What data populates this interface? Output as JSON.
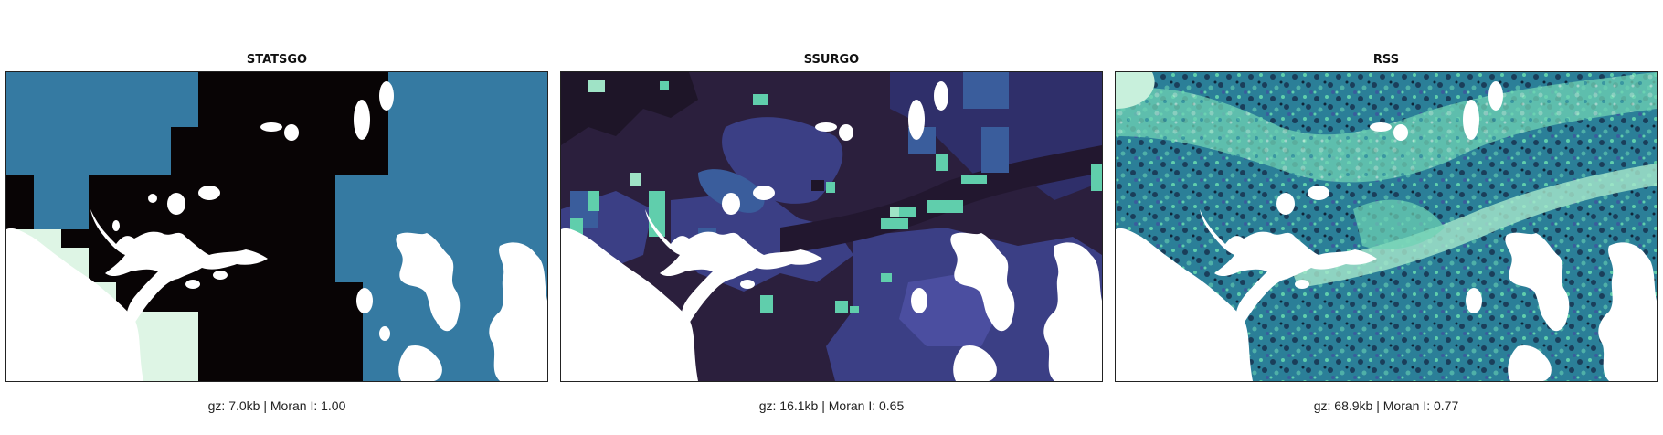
{
  "panels": [
    {
      "title": "STATSGO",
      "caption": "gz: 7.0kb | Moran I: 1.00"
    },
    {
      "title": "SSURGO",
      "caption": "gz: 16.1kb | Moran I: 0.65"
    },
    {
      "title": "RSS",
      "caption": "gz: 68.9kb | Moran I: 0.77"
    }
  ],
  "colors": {
    "black": "#080405",
    "steel_blue": "#357aa2",
    "pale_mint": "#def5e5",
    "dark_purple": "#2b1f3d",
    "indigo": "#3b3f85",
    "mid_blue": "#3a5d9c",
    "mint": "#60ceac",
    "teal": "#2b7f98",
    "dark_teal": "#1a3e5a",
    "water": "#ffffff"
  }
}
